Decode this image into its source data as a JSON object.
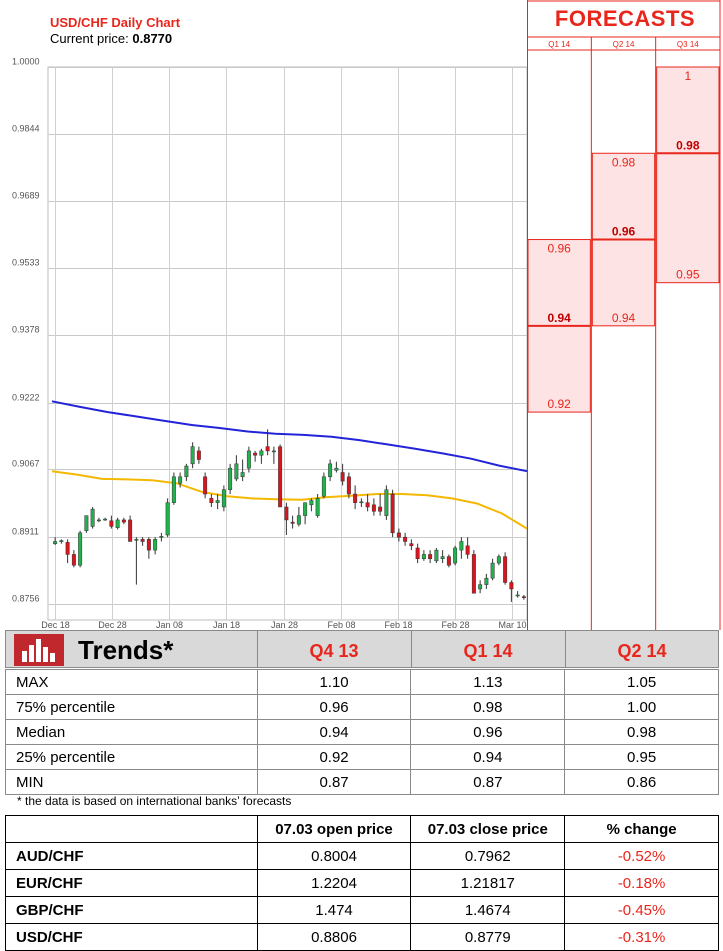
{
  "header": {
    "chart_title": "USD/CHF Daily Chart",
    "price_label": "Current price:",
    "price_value": "0.8770"
  },
  "forecasts": {
    "title": "FORECASTS",
    "columns": [
      "Q1 14",
      "Q2 14",
      "Q3 14"
    ],
    "boxes": [
      {
        "col": 0,
        "labels": [
          "0.96",
          "0.94",
          "0.92"
        ],
        "values": [
          0.96,
          0.94,
          0.92
        ],
        "bold": "0.94"
      },
      {
        "col": 1,
        "labels": [
          "0.98",
          "0.96",
          "0.94"
        ],
        "values": [
          0.98,
          0.96,
          0.94
        ],
        "bold": "0.96"
      },
      {
        "col": 2,
        "labels": [
          "1",
          "0.98",
          "0.95"
        ],
        "values": [
          1.0,
          0.98,
          0.95
        ],
        "bold": "0.98"
      }
    ],
    "color": "#e8261c",
    "fill": "#fde3e3"
  },
  "chart_data": {
    "type": "candlestick",
    "title": "USD/CHF Daily Chart",
    "ylim": [
      0.8718,
      1.0
    ],
    "y_ticks": [
      "1.0000",
      "0.9844",
      "0.9689",
      "0.9533",
      "0.9378",
      "0.9222",
      "0.9067",
      "0.8911",
      "0.8756"
    ],
    "x_ticks": [
      "Dec 18",
      "Dec 28",
      "Jan 08",
      "Jan 18",
      "Jan 28",
      "Feb 08",
      "Feb 18",
      "Feb 28",
      "Mar 10"
    ],
    "grid": true,
    "up_color": "#22b14c",
    "down_color": "#d9151e",
    "candles": [
      [
        0.8895,
        0.891,
        0.8892,
        0.89
      ],
      [
        0.89,
        0.8905,
        0.8895,
        0.8902
      ],
      [
        0.8898,
        0.8905,
        0.885,
        0.887
      ],
      [
        0.887,
        0.888,
        0.884,
        0.8845
      ],
      [
        0.8845,
        0.8925,
        0.884,
        0.892
      ],
      [
        0.8925,
        0.896,
        0.892,
        0.896
      ],
      [
        0.8935,
        0.898,
        0.893,
        0.8975
      ],
      [
        0.895,
        0.8955,
        0.8945,
        0.895
      ],
      [
        0.895,
        0.8955,
        0.8948,
        0.8952
      ],
      [
        0.8948,
        0.896,
        0.893,
        0.8935
      ],
      [
        0.8932,
        0.8955,
        0.8928,
        0.895
      ],
      [
        0.895,
        0.8955,
        0.894,
        0.8945
      ],
      [
        0.895,
        0.896,
        0.89,
        0.89
      ],
      [
        0.8905,
        0.891,
        0.88,
        0.8905
      ],
      [
        0.8905,
        0.891,
        0.889,
        0.89
      ],
      [
        0.8905,
        0.891,
        0.886,
        0.888
      ],
      [
        0.888,
        0.891,
        0.887,
        0.8905
      ],
      [
        0.891,
        0.892,
        0.89,
        0.8912
      ],
      [
        0.8915,
        0.9,
        0.891,
        0.899
      ],
      [
        0.899,
        0.906,
        0.8985,
        0.905
      ],
      [
        0.9035,
        0.906,
        0.9025,
        0.905
      ],
      [
        0.905,
        0.908,
        0.904,
        0.9075
      ],
      [
        0.908,
        0.913,
        0.907,
        0.912
      ],
      [
        0.911,
        0.912,
        0.908,
        0.909
      ],
      [
        0.905,
        0.906,
        0.9,
        0.901
      ],
      [
        0.9,
        0.901,
        0.898,
        0.899
      ],
      [
        0.899,
        0.901,
        0.8975,
        0.8995
      ],
      [
        0.898,
        0.903,
        0.897,
        0.902
      ],
      [
        0.902,
        0.908,
        0.901,
        0.907
      ],
      [
        0.9045,
        0.91,
        0.904,
        0.908
      ],
      [
        0.905,
        0.909,
        0.904,
        0.906
      ],
      [
        0.907,
        0.912,
        0.906,
        0.911
      ],
      [
        0.9105,
        0.911,
        0.9085,
        0.91
      ],
      [
        0.91,
        0.9115,
        0.908,
        0.911
      ],
      [
        0.912,
        0.916,
        0.91,
        0.911
      ],
      [
        0.911,
        0.912,
        0.908,
        0.911
      ],
      [
        0.912,
        0.9125,
        0.898,
        0.898
      ],
      [
        0.898,
        0.899,
        0.8915,
        0.895
      ],
      [
        0.8945,
        0.896,
        0.893,
        0.8942
      ],
      [
        0.894,
        0.898,
        0.8935,
        0.896
      ],
      [
        0.896,
        0.899,
        0.894,
        0.899
      ],
      [
        0.8985,
        0.9,
        0.897,
        0.8995
      ],
      [
        0.896,
        0.901,
        0.8955,
        0.9
      ],
      [
        0.9005,
        0.906,
        0.9,
        0.905
      ],
      [
        0.905,
        0.909,
        0.904,
        0.908
      ],
      [
        0.9065,
        0.9085,
        0.906,
        0.907
      ],
      [
        0.906,
        0.908,
        0.903,
        0.904
      ],
      [
        0.905,
        0.906,
        0.9,
        0.901
      ],
      [
        0.901,
        0.903,
        0.8975,
        0.899
      ],
      [
        0.899,
        0.9,
        0.898,
        0.8992
      ],
      [
        0.899,
        0.901,
        0.897,
        0.898
      ],
      [
        0.8985,
        0.9,
        0.896,
        0.897
      ],
      [
        0.898,
        0.901,
        0.896,
        0.897
      ],
      [
        0.896,
        0.903,
        0.895,
        0.902
      ],
      [
        0.901,
        0.902,
        0.891,
        0.892
      ],
      [
        0.892,
        0.893,
        0.89,
        0.891
      ],
      [
        0.891,
        0.892,
        0.889,
        0.89
      ],
      [
        0.8895,
        0.8905,
        0.888,
        0.889
      ],
      [
        0.8885,
        0.8895,
        0.885,
        0.886
      ],
      [
        0.886,
        0.888,
        0.8855,
        0.887
      ],
      [
        0.887,
        0.888,
        0.885,
        0.886
      ],
      [
        0.8855,
        0.8885,
        0.885,
        0.888
      ],
      [
        0.886,
        0.888,
        0.885,
        0.8865
      ],
      [
        0.8865,
        0.887,
        0.884,
        0.8845
      ],
      [
        0.885,
        0.889,
        0.8845,
        0.8885
      ],
      [
        0.888,
        0.891,
        0.886,
        0.89
      ],
      [
        0.889,
        0.891,
        0.886,
        0.887
      ],
      [
        0.887,
        0.888,
        0.878,
        0.878
      ],
      [
        0.879,
        0.881,
        0.878,
        0.88
      ],
      [
        0.88,
        0.8825,
        0.879,
        0.8815
      ],
      [
        0.8815,
        0.886,
        0.881,
        0.885
      ],
      [
        0.885,
        0.887,
        0.8845,
        0.8865
      ],
      [
        0.8865,
        0.8875,
        0.88,
        0.8805
      ],
      [
        0.8805,
        0.881,
        0.876,
        0.879
      ],
      [
        0.8775,
        0.8785,
        0.877,
        0.8776
      ],
      [
        0.8772,
        0.8776,
        0.8765,
        0.877
      ]
    ],
    "ma_blue": {
      "color": "#2323d8",
      "values": [
        0.9225,
        0.9212,
        0.92,
        0.919,
        0.918,
        0.917,
        0.9163,
        0.9155,
        0.915,
        0.9147,
        0.9143,
        0.9135,
        0.9125,
        0.9115,
        0.9104,
        0.9092,
        0.9076,
        0.9063
      ]
    },
    "ma_orange": {
      "color": "#f5b800",
      "values": [
        0.9063,
        0.9055,
        0.9045,
        0.9044,
        0.9042,
        0.9035,
        0.9015,
        0.9005,
        0.9,
        0.8998,
        0.8997,
        0.9003,
        0.9006,
        0.901,
        0.901,
        0.9007,
        0.9,
        0.8988,
        0.8965,
        0.893
      ]
    }
  },
  "trends": {
    "title": "Trends*",
    "columns": [
      "Q4 13",
      "Q1 14",
      "Q2 14"
    ],
    "rows": [
      {
        "label": "MAX",
        "values": [
          "1.10",
          "1.13",
          "1.05"
        ]
      },
      {
        "label": "75% percentile",
        "values": [
          "0.96",
          "0.98",
          "1.00"
        ]
      },
      {
        "label": "Median",
        "values": [
          "0.94",
          "0.96",
          "0.98"
        ]
      },
      {
        "label": "25% percentile",
        "values": [
          "0.92",
          "0.94",
          "0.95"
        ]
      },
      {
        "label": "MIN",
        "values": [
          "0.87",
          "0.87",
          "0.86"
        ]
      }
    ],
    "note": "* the data is based on international banks’ forecasts"
  },
  "fx_table": {
    "headers": [
      "",
      "07.03 open price",
      "07.03 close price",
      "% change"
    ],
    "rows": [
      {
        "pair": "AUD/CHF",
        "open": "0.8004",
        "close": "0.7962",
        "change": "-0.52%"
      },
      {
        "pair": "EUR/CHF",
        "open": "1.2204",
        "close": "1.21817",
        "change": "-0.18%"
      },
      {
        "pair": "GBP/CHF",
        "open": "1.474",
        "close": "1.4674",
        "change": "-0.45%"
      },
      {
        "pair": "USD/CHF",
        "open": "0.8806",
        "close": "0.8779",
        "change": "-0.31%"
      }
    ]
  }
}
